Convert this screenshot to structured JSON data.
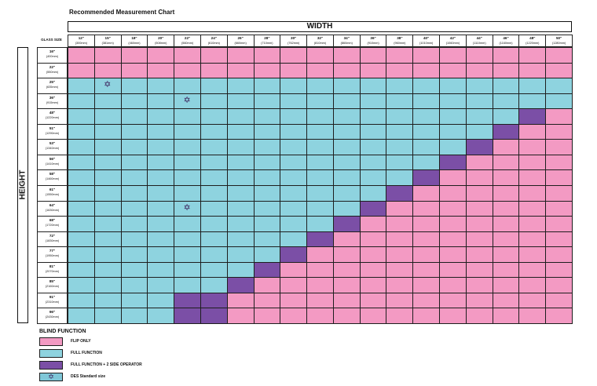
{
  "title": "Recommended Measurement Chart",
  "width_label": "WIDTH",
  "height_label": "HEIGHT",
  "glass_size_label": "GLASS SIZE",
  "columns": [
    {
      "in": "12\"",
      "mm": "(300mm)"
    },
    {
      "in": "15\"",
      "mm": "(381mm)"
    },
    {
      "in": "18\"",
      "mm": "(460mm)"
    },
    {
      "in": "20\"",
      "mm": "(508mm)"
    },
    {
      "in": "22\"",
      "mm": "(560mm)"
    },
    {
      "in": "24\"",
      "mm": "(610mm)"
    },
    {
      "in": "26\"",
      "mm": "(660mm)"
    },
    {
      "in": "28\"",
      "mm": "(710mm)"
    },
    {
      "in": "30\"",
      "mm": "(762mm)"
    },
    {
      "in": "32\"",
      "mm": "(810mm)"
    },
    {
      "in": "34\"",
      "mm": "(860mm)"
    },
    {
      "in": "36\"",
      "mm": "(910mm)"
    },
    {
      "in": "38\"",
      "mm": "(960mm)"
    },
    {
      "in": "40\"",
      "mm": "(1010mm)"
    },
    {
      "in": "42\"",
      "mm": "(1060mm)"
    },
    {
      "in": "44\"",
      "mm": "(1110mm)"
    },
    {
      "in": "46\"",
      "mm": "(1160mm)"
    },
    {
      "in": "48\"",
      "mm": "(1220mm)"
    },
    {
      "in": "50\"",
      "mm": "(1280mm)"
    }
  ],
  "rows": [
    {
      "in": "16\"",
      "mm": "(400mm)"
    },
    {
      "in": "22\"",
      "mm": "(550mm)"
    },
    {
      "in": "25\"",
      "mm": "(635mm)"
    },
    {
      "in": "36\"",
      "mm": "(915mm)"
    },
    {
      "in": "48\"",
      "mm": "(1220mm)"
    },
    {
      "in": "51\"",
      "mm": "(1290mm)"
    },
    {
      "in": "53\"",
      "mm": "(1340mm)"
    },
    {
      "in": "56\"",
      "mm": "(1410mm)"
    },
    {
      "in": "58\"",
      "mm": "(1460mm)"
    },
    {
      "in": "61\"",
      "mm": "(1550mm)"
    },
    {
      "in": "64\"",
      "mm": "(1630mm)"
    },
    {
      "in": "68\"",
      "mm": "(1720mm)"
    },
    {
      "in": "72\"",
      "mm": "(1830mm)"
    },
    {
      "in": "77\"",
      "mm": "(1950mm)"
    },
    {
      "in": "81\"",
      "mm": "(2070mm)"
    },
    {
      "in": "85\"",
      "mm": "(2160mm)"
    },
    {
      "in": "91\"",
      "mm": "(2310mm)"
    },
    {
      "in": "96\"",
      "mm": "(2430mm)"
    }
  ],
  "colors": {
    "F": "#f39ac3",
    "B": "#8ed3df",
    "P": "#7b4fa6",
    "S": "#7fc7d8"
  },
  "grid": [
    "FFFFFFFFFFFFFFFFFFF",
    "FFFFFFFFFFFFFFFFFFF",
    "BBBBBBBBBBBBBBBBBBB",
    "BBBBBBBBBBBBBBBBBBB",
    "BBBBBBBBBBBBBBBBBPF",
    "BBBBBBBBBBBBBBBBPFF",
    "BBBBBBBBBBBBBBBPFFF",
    "BBBBBBBBBBBBBBPFFFF",
    "BBBBBBBBBBBBBPFFFFF",
    "BBBBBBBBBBBBPFFFFFF",
    "BBBBBBBBBBBPFFFFFFF",
    "BBBBBBBBBBPFFFFFFFF",
    "BBBBBBBBBPFFFFFFFFF",
    "BBBBBBBBPFFFFFFFFFF",
    "BBBBBBBPFFFFFFFFFFF",
    "BBBBBBPFFFFFFFFFFFF",
    "BBBBPPFFFFFFFFFFFFF",
    "BBBBPPFFFFFFFFFFFFF"
  ],
  "standard_sizes": [
    {
      "row": 2,
      "col": 1
    },
    {
      "row": 3,
      "col": 4
    },
    {
      "row": 10,
      "col": 4
    }
  ],
  "star_glyph": "✡",
  "legend": {
    "title": "BLIND FUNCTION",
    "items": [
      {
        "key": "F",
        "label": "FLIP ONLY"
      },
      {
        "key": "B",
        "label": "FULL FUNCTION"
      },
      {
        "key": "P",
        "label": "FULL FUNCTION + 2 SIDE OPERATOR"
      },
      {
        "key": "S",
        "label": "DES Standard size",
        "star": true
      }
    ]
  }
}
